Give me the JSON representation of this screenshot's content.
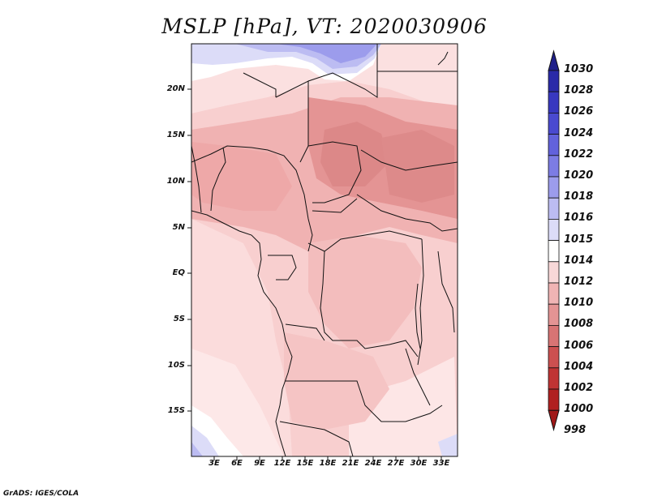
{
  "title": "MSLP [hPa], VT: 2020030906",
  "credit": "GrADS: IGES/COLA",
  "lat_labels": [
    "20N",
    "15N",
    "10N",
    "5N",
    "EQ",
    "5S",
    "10S",
    "15S"
  ],
  "lon_labels": [
    "3E",
    "6E",
    "9E",
    "12E",
    "15E",
    "18E",
    "21E",
    "24E",
    "27E",
    "30E",
    "33E"
  ],
  "colorbar": {
    "levels": [
      "1030",
      "1028",
      "1026",
      "1024",
      "1022",
      "1020",
      "1018",
      "1016",
      "1015",
      "1014",
      "1012",
      "1010",
      "1008",
      "1006",
      "1004",
      "1002",
      "1000",
      "998"
    ],
    "colors": [
      "#20208a",
      "#2a2aa8",
      "#3838c0",
      "#4a4ad0",
      "#6262dc",
      "#7c7ce4",
      "#9c9cec",
      "#bcbcf2",
      "#dcdcf8",
      "#ffffff",
      "#f8d8d8",
      "#f0b4b4",
      "#e49494",
      "#d87474",
      "#cc5050",
      "#c03434",
      "#b02020",
      "#a01818"
    ]
  }
}
